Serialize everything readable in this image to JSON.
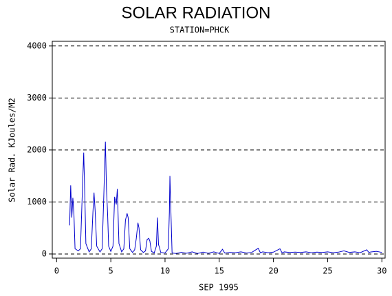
{
  "chart_data": {
    "type": "line",
    "title": "SOLAR RADIATION",
    "subtitle": "STATION=PHCK",
    "x_label": "SEP 1995",
    "y_label": "Solar Rad. KJoules/M2",
    "xlim": [
      -0.4,
      30.3
    ],
    "ylim": [
      -80,
      4090
    ],
    "xticks": [
      0,
      5,
      10,
      15,
      20,
      25,
      30
    ],
    "yticks": [
      0,
      1000,
      2000,
      3000,
      4000
    ],
    "grid": true,
    "x": [
      1.2,
      1.3,
      1.4,
      1.5,
      1.6,
      1.7,
      2.0,
      2.2,
      2.35,
      2.5,
      2.6,
      2.7,
      3.0,
      3.2,
      3.35,
      3.45,
      3.55,
      3.7,
      4.0,
      4.2,
      4.35,
      4.5,
      4.6,
      4.7,
      4.8,
      5.0,
      5.2,
      5.35,
      5.5,
      5.6,
      5.75,
      6.0,
      6.2,
      6.35,
      6.5,
      6.6,
      6.75,
      7.0,
      7.2,
      7.35,
      7.5,
      7.6,
      7.75,
      8.0,
      8.2,
      8.35,
      8.5,
      8.6,
      8.75,
      9.0,
      9.2,
      9.3,
      9.4,
      9.5,
      9.6,
      10.0,
      10.3,
      10.4,
      10.45,
      10.55,
      10.65,
      11,
      11.5,
      12,
      12.5,
      13,
      13.5,
      14,
      14.5,
      15,
      15.3,
      15.5,
      16,
      16.5,
      17,
      17.5,
      18,
      18.6,
      18.8,
      19,
      19.5,
      20,
      20.6,
      20.8,
      21,
      21.5,
      22,
      22.5,
      23,
      23.5,
      24,
      24.5,
      25,
      25.5,
      26,
      26.5,
      27,
      27.5,
      28,
      28.6,
      28.8,
      29,
      29.5,
      30
    ],
    "series": [
      {
        "color": "#0000cc",
        "values": [
          550,
          1320,
          700,
          1080,
          750,
          100,
          60,
          100,
          1050,
          1950,
          1150,
          200,
          40,
          100,
          800,
          1180,
          850,
          150,
          40,
          100,
          1100,
          2160,
          1250,
          800,
          150,
          50,
          150,
          1100,
          950,
          1250,
          200,
          40,
          100,
          650,
          780,
          700,
          100,
          30,
          80,
          300,
          600,
          500,
          80,
          30,
          60,
          280,
          300,
          250,
          50,
          20,
          150,
          700,
          180,
          120,
          30,
          20,
          100,
          800,
          1500,
          750,
          20,
          10,
          30,
          15,
          40,
          10,
          35,
          15,
          40,
          10,
          90,
          20,
          30,
          25,
          40,
          20,
          30,
          110,
          20,
          40,
          25,
          35,
          100,
          20,
          40,
          30,
          35,
          30,
          40,
          25,
          35,
          30,
          40,
          25,
          35,
          60,
          30,
          40,
          25,
          80,
          30,
          40,
          50,
          30
        ]
      }
    ]
  }
}
